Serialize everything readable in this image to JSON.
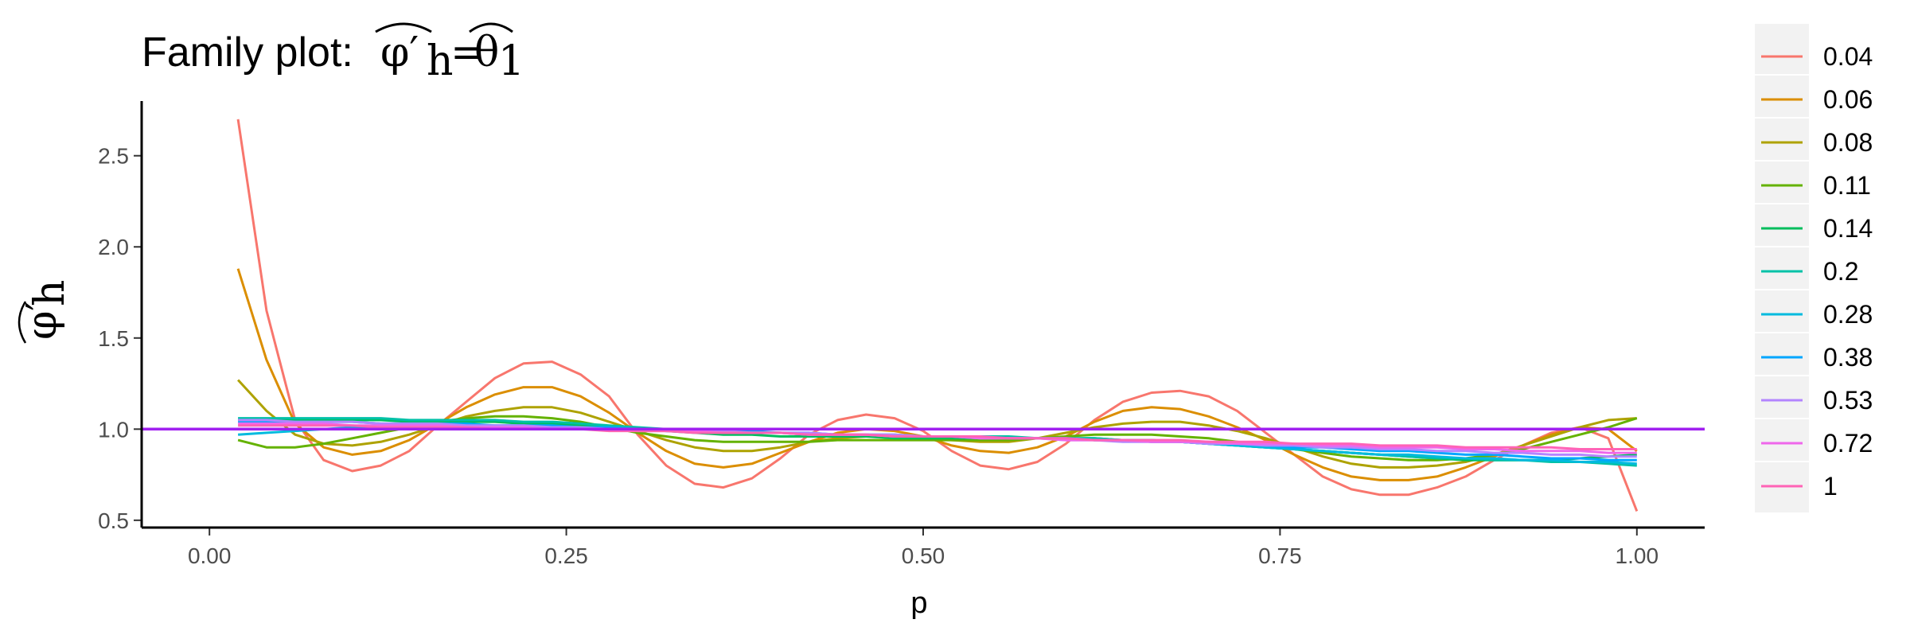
{
  "chart_data": {
    "type": "line",
    "title": {
      "prefix": "Family plot:",
      "lhs_symbol": "φ′",
      "lhs_subscript": "h",
      "equals": "=",
      "rhs_symbol": "θ",
      "rhs_subscript": "1"
    },
    "xlabel": "p",
    "ylabel": {
      "symbol": "φ′",
      "subscript": "h"
    },
    "xlim": [
      -0.0475,
      1.0475
    ],
    "ylim": [
      0.46,
      2.8
    ],
    "x_ticks": [
      0.0,
      0.25,
      0.5,
      0.75,
      1.0
    ],
    "x_tick_labels": [
      "0.00",
      "0.25",
      "0.50",
      "0.75",
      "1.00"
    ],
    "y_ticks": [
      0.5,
      1.0,
      1.5,
      2.0,
      2.5
    ],
    "y_tick_labels": [
      "0.5",
      "1.0",
      "1.5",
      "2.0",
      "2.5"
    ],
    "grid": false,
    "legend_position": "right",
    "reference_line": {
      "y": 1.0,
      "color": "#a020f0"
    },
    "x": [
      0.02,
      0.04,
      0.06,
      0.08,
      0.1,
      0.12,
      0.14,
      0.16,
      0.18,
      0.2,
      0.22,
      0.24,
      0.26,
      0.28,
      0.3,
      0.32,
      0.34,
      0.36,
      0.38,
      0.4,
      0.42,
      0.44,
      0.46,
      0.48,
      0.5,
      0.52,
      0.54,
      0.56,
      0.58,
      0.6,
      0.62,
      0.64,
      0.66,
      0.68,
      0.7,
      0.72,
      0.74,
      0.76,
      0.78,
      0.8,
      0.82,
      0.84,
      0.86,
      0.88,
      0.9,
      0.92,
      0.94,
      0.96,
      0.98,
      1.0
    ],
    "series": [
      {
        "name": "0.04",
        "color": "#F8766D",
        "values": [
          2.7,
          1.65,
          1.05,
          0.83,
          0.77,
          0.8,
          0.88,
          1.02,
          1.15,
          1.28,
          1.36,
          1.37,
          1.3,
          1.18,
          0.97,
          0.8,
          0.7,
          0.68,
          0.73,
          0.84,
          0.97,
          1.05,
          1.08,
          1.06,
          0.99,
          0.88,
          0.8,
          0.78,
          0.82,
          0.92,
          1.05,
          1.15,
          1.2,
          1.21,
          1.18,
          1.1,
          0.98,
          0.86,
          0.74,
          0.67,
          0.64,
          0.64,
          0.68,
          0.74,
          0.83,
          0.91,
          0.98,
          1.01,
          0.95,
          0.55
        ]
      },
      {
        "name": "0.06",
        "color": "#DB8E00",
        "values": [
          1.88,
          1.38,
          1.03,
          0.9,
          0.86,
          0.88,
          0.94,
          1.03,
          1.12,
          1.19,
          1.23,
          1.23,
          1.18,
          1.09,
          0.98,
          0.88,
          0.81,
          0.79,
          0.81,
          0.87,
          0.93,
          0.98,
          1.0,
          0.99,
          0.96,
          0.91,
          0.88,
          0.87,
          0.9,
          0.96,
          1.04,
          1.1,
          1.12,
          1.11,
          1.07,
          1.01,
          0.94,
          0.86,
          0.79,
          0.74,
          0.72,
          0.72,
          0.74,
          0.79,
          0.85,
          0.91,
          0.97,
          1.01,
          1.0,
          0.88
        ]
      },
      {
        "name": "0.08",
        "color": "#AEA200",
        "values": [
          1.27,
          1.1,
          0.97,
          0.92,
          0.91,
          0.93,
          0.97,
          1.02,
          1.07,
          1.1,
          1.12,
          1.12,
          1.09,
          1.04,
          0.99,
          0.94,
          0.9,
          0.88,
          0.88,
          0.9,
          0.93,
          0.95,
          0.96,
          0.96,
          0.95,
          0.94,
          0.93,
          0.93,
          0.95,
          0.98,
          1.01,
          1.03,
          1.04,
          1.04,
          1.02,
          0.99,
          0.95,
          0.9,
          0.85,
          0.81,
          0.79,
          0.79,
          0.8,
          0.82,
          0.86,
          0.91,
          0.96,
          1.01,
          1.05,
          1.06
        ]
      },
      {
        "name": "0.11",
        "color": "#64B200",
        "values": [
          0.94,
          0.9,
          0.9,
          0.92,
          0.95,
          0.98,
          1.01,
          1.04,
          1.06,
          1.07,
          1.07,
          1.06,
          1.04,
          1.01,
          0.98,
          0.96,
          0.94,
          0.93,
          0.93,
          0.93,
          0.93,
          0.94,
          0.94,
          0.94,
          0.94,
          0.94,
          0.94,
          0.94,
          0.95,
          0.96,
          0.97,
          0.97,
          0.97,
          0.96,
          0.95,
          0.93,
          0.91,
          0.89,
          0.87,
          0.85,
          0.84,
          0.83,
          0.83,
          0.84,
          0.86,
          0.89,
          0.93,
          0.97,
          1.01,
          1.06
        ]
      },
      {
        "name": "0.14",
        "color": "#00BD5C",
        "values": [
          1.05,
          1.05,
          1.05,
          1.05,
          1.05,
          1.05,
          1.04,
          1.04,
          1.04,
          1.04,
          1.03,
          1.03,
          1.02,
          1.01,
          1.0,
          0.99,
          0.98,
          0.97,
          0.97,
          0.96,
          0.96,
          0.96,
          0.96,
          0.95,
          0.95,
          0.95,
          0.95,
          0.95,
          0.95,
          0.95,
          0.95,
          0.94,
          0.94,
          0.93,
          0.92,
          0.91,
          0.9,
          0.89,
          0.88,
          0.87,
          0.86,
          0.85,
          0.84,
          0.83,
          0.83,
          0.83,
          0.83,
          0.84,
          0.85,
          0.86
        ]
      },
      {
        "name": "0.2",
        "color": "#00C1A7",
        "values": [
          1.06,
          1.06,
          1.06,
          1.06,
          1.06,
          1.06,
          1.05,
          1.05,
          1.05,
          1.05,
          1.04,
          1.04,
          1.03,
          1.02,
          1.01,
          1.0,
          0.99,
          0.99,
          0.98,
          0.98,
          0.97,
          0.97,
          0.97,
          0.96,
          0.96,
          0.96,
          0.96,
          0.96,
          0.95,
          0.95,
          0.95,
          0.94,
          0.94,
          0.93,
          0.92,
          0.91,
          0.9,
          0.89,
          0.88,
          0.87,
          0.86,
          0.85,
          0.84,
          0.84,
          0.83,
          0.83,
          0.82,
          0.82,
          0.81,
          0.8
        ]
      },
      {
        "name": "0.28",
        "color": "#00BADE",
        "values": [
          0.97,
          0.98,
          0.99,
          1.0,
          1.01,
          1.01,
          1.02,
          1.02,
          1.02,
          1.02,
          1.02,
          1.01,
          1.01,
          1.0,
          1.0,
          0.99,
          0.99,
          0.98,
          0.98,
          0.98,
          0.97,
          0.97,
          0.97,
          0.96,
          0.96,
          0.96,
          0.96,
          0.95,
          0.95,
          0.95,
          0.94,
          0.94,
          0.93,
          0.93,
          0.92,
          0.91,
          0.9,
          0.89,
          0.88,
          0.87,
          0.86,
          0.86,
          0.85,
          0.84,
          0.84,
          0.83,
          0.83,
          0.82,
          0.82,
          0.81
        ]
      },
      {
        "name": "0.38",
        "color": "#00A6FF",
        "values": [
          1.04,
          1.04,
          1.04,
          1.04,
          1.04,
          1.03,
          1.03,
          1.03,
          1.03,
          1.02,
          1.02,
          1.02,
          1.01,
          1.01,
          1.0,
          1.0,
          0.99,
          0.99,
          0.99,
          0.98,
          0.98,
          0.97,
          0.97,
          0.97,
          0.96,
          0.96,
          0.96,
          0.95,
          0.95,
          0.95,
          0.94,
          0.94,
          0.93,
          0.93,
          0.92,
          0.92,
          0.91,
          0.9,
          0.9,
          0.89,
          0.88,
          0.88,
          0.87,
          0.86,
          0.86,
          0.85,
          0.84,
          0.84,
          0.83,
          0.83
        ]
      },
      {
        "name": "0.53",
        "color": "#B385FF",
        "values": [
          1.05,
          1.05,
          1.04,
          1.04,
          1.04,
          1.03,
          1.03,
          1.03,
          1.02,
          1.02,
          1.02,
          1.01,
          1.01,
          1.0,
          1.0,
          1.0,
          0.99,
          0.99,
          0.98,
          0.98,
          0.98,
          0.97,
          0.97,
          0.97,
          0.96,
          0.96,
          0.95,
          0.95,
          0.95,
          0.94,
          0.94,
          0.93,
          0.93,
          0.93,
          0.92,
          0.92,
          0.91,
          0.91,
          0.9,
          0.9,
          0.89,
          0.89,
          0.88,
          0.88,
          0.87,
          0.87,
          0.86,
          0.86,
          0.85,
          0.85
        ]
      },
      {
        "name": "0.72",
        "color": "#EF67EB",
        "values": [
          1.03,
          1.03,
          1.03,
          1.03,
          1.02,
          1.02,
          1.02,
          1.02,
          1.01,
          1.01,
          1.01,
          1.0,
          1.0,
          1.0,
          0.99,
          0.99,
          0.99,
          0.98,
          0.98,
          0.98,
          0.97,
          0.97,
          0.97,
          0.96,
          0.96,
          0.96,
          0.95,
          0.95,
          0.95,
          0.94,
          0.94,
          0.94,
          0.93,
          0.93,
          0.93,
          0.92,
          0.92,
          0.92,
          0.91,
          0.91,
          0.9,
          0.9,
          0.9,
          0.89,
          0.89,
          0.88,
          0.88,
          0.88,
          0.87,
          0.87
        ]
      },
      {
        "name": "1",
        "color": "#FF63B6",
        "values": [
          1.02,
          1.02,
          1.02,
          1.02,
          1.02,
          1.01,
          1.01,
          1.01,
          1.01,
          1.0,
          1.0,
          1.0,
          1.0,
          0.99,
          0.99,
          0.99,
          0.98,
          0.98,
          0.98,
          0.98,
          0.97,
          0.97,
          0.97,
          0.96,
          0.96,
          0.96,
          0.96,
          0.95,
          0.95,
          0.95,
          0.94,
          0.94,
          0.94,
          0.94,
          0.93,
          0.93,
          0.93,
          0.92,
          0.92,
          0.92,
          0.91,
          0.91,
          0.91,
          0.9,
          0.9,
          0.9,
          0.9,
          0.89,
          0.89,
          0.89
        ]
      }
    ]
  }
}
